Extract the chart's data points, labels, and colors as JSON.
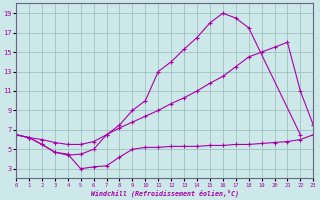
{
  "xlabel": "Windchill (Refroidissement éolien,°C)",
  "xlim": [
    0,
    23
  ],
  "ylim": [
    2,
    20
  ],
  "xticks": [
    0,
    1,
    2,
    3,
    4,
    5,
    6,
    7,
    8,
    9,
    10,
    11,
    12,
    13,
    14,
    15,
    16,
    17,
    18,
    19,
    20,
    21,
    22,
    23
  ],
  "yticks": [
    3,
    5,
    7,
    9,
    11,
    13,
    15,
    17,
    19
  ],
  "background_color": "#cce8e8",
  "grid_color": "#aaccaa",
  "line_color": "#aa00aa",
  "line1_x": [
    0,
    1,
    2,
    3,
    4,
    5,
    6,
    7,
    8,
    9,
    10,
    11,
    12,
    13,
    14,
    15,
    16,
    17,
    18,
    22
  ],
  "line1_y": [
    6.5,
    6.2,
    5.5,
    4.7,
    4.4,
    4.5,
    5.0,
    6.5,
    7.5,
    9.0,
    10.0,
    13.0,
    14.0,
    15.3,
    16.5,
    18.0,
    19.0,
    18.5,
    17.5,
    6.5
  ],
  "line2_x": [
    0,
    1,
    2,
    3,
    4,
    5,
    6,
    7,
    8,
    9,
    10,
    11,
    12,
    13,
    14,
    15,
    16,
    17,
    18,
    19,
    20,
    21,
    22,
    23
  ],
  "line2_y": [
    6.5,
    6.2,
    6.0,
    5.7,
    5.5,
    5.5,
    5.8,
    6.5,
    7.2,
    7.8,
    8.4,
    9.0,
    9.7,
    10.3,
    11.0,
    11.8,
    12.5,
    13.5,
    14.5,
    15.0,
    15.5,
    16.0,
    11.0,
    7.5
  ],
  "line3_x": [
    0,
    1,
    2,
    3,
    4,
    5,
    6,
    7,
    8,
    9,
    10,
    11,
    12,
    13,
    14,
    15,
    16,
    17,
    18,
    19,
    20,
    21,
    22,
    23
  ],
  "line3_y": [
    6.5,
    6.2,
    5.5,
    4.7,
    4.5,
    3.0,
    3.2,
    3.3,
    4.2,
    5.0,
    5.2,
    5.2,
    5.3,
    5.3,
    5.3,
    5.4,
    5.4,
    5.5,
    5.5,
    5.6,
    5.7,
    5.8,
    6.0,
    6.5
  ]
}
